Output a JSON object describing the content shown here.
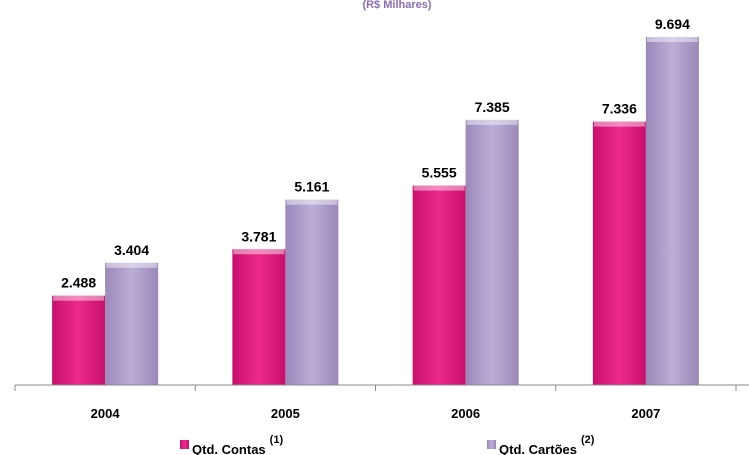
{
  "chart_data": {
    "type": "bar",
    "subtitle": "(R$ Milhares)",
    "categories": [
      "2004",
      "2005",
      "2006",
      "2007"
    ],
    "series": [
      {
        "name": "Qtd. Contas",
        "footnote": "(1)",
        "color": "#e0197f",
        "values": [
          2488,
          3781,
          5555,
          7336
        ],
        "value_labels": [
          "2.488",
          "3.781",
          "5.555",
          "7.336"
        ]
      },
      {
        "name": "Qtd. Cartões",
        "footnote": "(2)",
        "color": "#ae9dcb",
        "values": [
          3404,
          5161,
          7385,
          9694
        ],
        "value_labels": [
          "3.404",
          "5.161",
          "7.385",
          "9.694"
        ]
      }
    ],
    "ylim": [
      0,
      10000
    ]
  }
}
